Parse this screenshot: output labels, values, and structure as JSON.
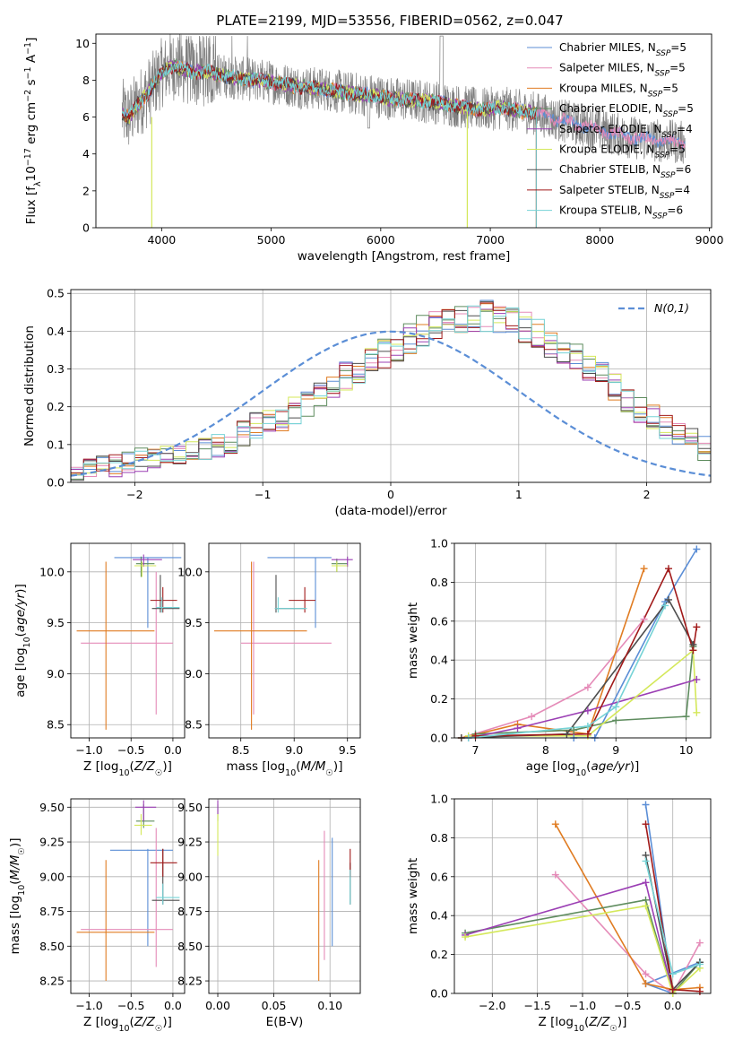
{
  "colors": {
    "chab_miles": "#5b8ed6",
    "salp_miles": "#e58bb8",
    "krou_miles": "#e07c22",
    "chab_elodie": "#5e8c5e",
    "salp_elodie": "#9b3fb4",
    "krou_elodie": "#d4e85a",
    "chab_stelib": "#4d4d4d",
    "salp_stelib": "#a11a1a",
    "krou_stelib": "#76d3d6",
    "data": "#808080",
    "normal": "#5b8ed6",
    "grid": "#b0b0b0"
  },
  "chart_data": [
    {
      "id": "spectrum",
      "type": "line",
      "title": "PLATE=2199, MJD=53556, FIBERID=0562, z=0.047",
      "xlabel": "wavelength [Angstrom, rest frame]",
      "ylabel": "Flux [f_λ10^-17 erg cm^-2 s^-1 A^-1]",
      "xlim": [
        3400,
        9020
      ],
      "ylim": [
        0,
        10.5
      ],
      "xticks": [
        4000,
        5000,
        6000,
        7000,
        8000,
        9000
      ],
      "yticks": [
        0,
        2,
        4,
        6,
        8,
        10
      ],
      "grid": false,
      "legend_position": "top-right",
      "data_range": [
        3640,
        8780
      ],
      "continuum_x": [
        3640,
        3700,
        3800,
        3900,
        4000,
        4100,
        4200,
        4300,
        4400,
        4500,
        4700,
        4900,
        5100,
        5300,
        5500,
        5700,
        5900,
        6100,
        6300,
        6500,
        6700,
        6900,
        7100,
        7300,
        7420,
        7600,
        7800,
        8000,
        8200,
        8400,
        8600,
        8780
      ],
      "continuum_y": [
        6.2,
        6.0,
        6.8,
        7.5,
        8.4,
        8.8,
        8.6,
        8.4,
        8.5,
        8.3,
        8.1,
        8.0,
        7.8,
        7.6,
        7.5,
        7.3,
        7.2,
        7.0,
        6.9,
        6.8,
        6.6,
        6.4,
        6.5,
        6.3,
        6.2,
        5.9,
        5.6,
        5.3,
        5.0,
        4.8,
        4.7,
        4.6
      ],
      "legend": [
        {
          "label": "Chabrier MILES, N",
          "n": "5"
        },
        {
          "label": "Salpeter MILES, N",
          "n": "5"
        },
        {
          "label": "Kroupa MILES, N",
          "n": "5"
        },
        {
          "label": "Chabrier ELODIE, N",
          "n": "5"
        },
        {
          "label": "Salpeter ELODIE, N",
          "n": "4"
        },
        {
          "label": "Kroupa ELODIE, N",
          "n": "5"
        },
        {
          "label": "Chabrier STELIB, N",
          "n": "6"
        },
        {
          "label": "Salpeter STELIB, N",
          "n": "4"
        },
        {
          "label": "Kroupa STELIB, N",
          "n": "6"
        }
      ],
      "legend_subscript": "SSP"
    },
    {
      "id": "residuals",
      "type": "step",
      "xlabel": "(data-model)/error",
      "ylabel": "Normed distribution",
      "xlim": [
        -2.5,
        2.5
      ],
      "ylim": [
        0,
        0.51
      ],
      "xticks": [
        -2,
        -1,
        0,
        1,
        2
      ],
      "yticks": [
        0.0,
        0.1,
        0.2,
        0.3,
        0.4,
        0.5
      ],
      "grid": true,
      "legend_position": "top-right",
      "normal_label": "N(0,1)",
      "bin_width": 0.1,
      "bin_start": -2.5,
      "base_hist": [
        0.03,
        0.035,
        0.04,
        0.045,
        0.05,
        0.06,
        0.07,
        0.075,
        0.08,
        0.085,
        0.09,
        0.1,
        0.11,
        0.13,
        0.15,
        0.16,
        0.17,
        0.19,
        0.21,
        0.23,
        0.26,
        0.28,
        0.3,
        0.32,
        0.34,
        0.36,
        0.38,
        0.4,
        0.41,
        0.42,
        0.43,
        0.44,
        0.44,
        0.43,
        0.42,
        0.41,
        0.39,
        0.37,
        0.35,
        0.33,
        0.3,
        0.28,
        0.25,
        0.22,
        0.19,
        0.17,
        0.15,
        0.13,
        0.11,
        0.09
      ]
    },
    {
      "id": "age_vs_Z",
      "type": "errorbar",
      "xlabel": "Z [log10(Z/Z☉)]",
      "ylabel": "age [log10(age/yr)]",
      "xlim": [
        -1.22,
        0.14
      ],
      "ylim": [
        8.37,
        10.28
      ],
      "xticks": [
        -1.0,
        -0.5,
        0.0
      ],
      "yticks": [
        8.5,
        9.0,
        9.5,
        10.0
      ],
      "grid": true,
      "points": [
        {
          "s": "chab_miles",
          "x": -0.3,
          "y": 10.14,
          "xe": [
            -0.7,
            0.1
          ],
          "ye": [
            9.45,
            10.14
          ]
        },
        {
          "s": "salp_miles",
          "x": -0.2,
          "y": 9.3,
          "xe": [
            -1.1,
            0.0
          ],
          "ye": [
            8.6,
            10.0
          ]
        },
        {
          "s": "krou_miles",
          "x": -0.8,
          "y": 9.42,
          "xe": [
            -1.15,
            -0.22
          ],
          "ye": [
            8.45,
            10.1
          ]
        },
        {
          "s": "chab_elodie",
          "x": -0.38,
          "y": 10.08,
          "xe": [
            -0.44,
            -0.22
          ],
          "ye": [
            9.95,
            10.15
          ]
        },
        {
          "s": "salp_elodie",
          "x": -0.35,
          "y": 10.12,
          "xe": [
            -0.48,
            -0.13
          ],
          "ye": [
            10.05,
            10.17
          ]
        },
        {
          "s": "krou_elodie",
          "x": -0.37,
          "y": 10.06,
          "xe": [
            -0.46,
            -0.2
          ],
          "ye": [
            9.95,
            10.1
          ]
        },
        {
          "s": "chab_stelib",
          "x": -0.15,
          "y": 9.64,
          "xe": [
            -0.25,
            0.08
          ],
          "ye": [
            9.6,
            9.97
          ]
        },
        {
          "s": "salp_stelib",
          "x": -0.12,
          "y": 9.72,
          "xe": [
            -0.27,
            0.05
          ],
          "ye": [
            9.6,
            9.85
          ]
        },
        {
          "s": "krou_stelib",
          "x": -0.13,
          "y": 9.65,
          "xe": [
            -0.2,
            0.08
          ],
          "ye": [
            9.6,
            9.75
          ]
        }
      ]
    },
    {
      "id": "age_vs_mass",
      "type": "errorbar",
      "xlabel": "mass [log10(M/M☉)]",
      "ylabel": "",
      "xlim": [
        8.2,
        9.62
      ],
      "ylim": [
        8.37,
        10.28
      ],
      "xticks": [
        8.5,
        9.0,
        9.5
      ],
      "yticks": [
        8.5,
        9.0,
        9.5,
        10.0
      ],
      "grid": true,
      "points": [
        {
          "s": "chab_miles",
          "x": 9.2,
          "y": 10.14,
          "xe": [
            8.75,
            9.35
          ],
          "ye": [
            9.45,
            10.14
          ]
        },
        {
          "s": "salp_miles",
          "x": 8.62,
          "y": 9.3,
          "xe": [
            8.5,
            9.35
          ],
          "ye": [
            8.6,
            10.1
          ]
        },
        {
          "s": "krou_miles",
          "x": 8.6,
          "y": 9.42,
          "xe": [
            8.25,
            9.12
          ],
          "ye": [
            8.45,
            10.1
          ]
        },
        {
          "s": "chab_elodie",
          "x": 9.4,
          "y": 10.08,
          "xe": [
            9.35,
            9.5
          ],
          "ye": [
            10.0,
            10.13
          ]
        },
        {
          "s": "salp_elodie",
          "x": 9.5,
          "y": 10.12,
          "xe": [
            9.35,
            9.55
          ],
          "ye": [
            10.05,
            10.15
          ]
        },
        {
          "s": "krou_elodie",
          "x": 9.4,
          "y": 10.06,
          "xe": [
            9.35,
            9.5
          ],
          "ye": [
            10.0,
            10.1
          ]
        },
        {
          "s": "chab_stelib",
          "x": 8.83,
          "y": 9.64,
          "xe": [
            8.82,
            9.1
          ],
          "ye": [
            9.6,
            9.97
          ]
        },
        {
          "s": "salp_stelib",
          "x": 9.1,
          "y": 9.72,
          "xe": [
            8.95,
            9.2
          ],
          "ye": [
            9.6,
            9.85
          ]
        },
        {
          "s": "krou_stelib",
          "x": 8.85,
          "y": 9.64,
          "xe": [
            8.82,
            9.12
          ],
          "ye": [
            9.6,
            9.75
          ]
        }
      ]
    },
    {
      "id": "mw_vs_age",
      "type": "line",
      "xlabel": "age [log10(age/yr)]",
      "ylabel": "mass weight",
      "xlim": [
        6.7,
        10.35
      ],
      "ylim": [
        0,
        1
      ],
      "xticks": [
        7,
        8,
        9,
        10
      ],
      "yticks": [
        0.0,
        0.2,
        0.4,
        0.6,
        0.8,
        1.0
      ],
      "grid": true,
      "series": [
        {
          "s": "chab_miles",
          "x": [
            8.4,
            8.7,
            9.7,
            10.15
          ],
          "y": [
            0.0,
            0.0,
            0.7,
            0.97
          ]
        },
        {
          "s": "salp_miles",
          "x": [
            6.8,
            7.8,
            8.6,
            9.4
          ],
          "y": [
            0.0,
            0.11,
            0.26,
            0.61
          ]
        },
        {
          "s": "krou_miles",
          "x": [
            6.8,
            7.6,
            8.6,
            9.4
          ],
          "y": [
            0.0,
            0.07,
            0.02,
            0.87
          ]
        },
        {
          "s": "chab_elodie",
          "x": [
            7.0,
            8.4,
            9.0,
            10.0,
            10.1
          ],
          "y": [
            0.02,
            0.04,
            0.09,
            0.11,
            0.47
          ]
        },
        {
          "s": "salp_elodie",
          "x": [
            6.9,
            7.6,
            8.6,
            10.15
          ],
          "y": [
            0.0,
            0.05,
            0.14,
            0.3
          ]
        },
        {
          "s": "krou_elodie",
          "x": [
            6.9,
            8.6,
            10.1,
            10.15
          ],
          "y": [
            0.01,
            0.01,
            0.45,
            0.13
          ]
        },
        {
          "s": "chab_stelib",
          "x": [
            6.8,
            8.3,
            9.75,
            10.1
          ],
          "y": [
            0.0,
            0.02,
            0.71,
            0.48
          ]
        },
        {
          "s": "salp_stelib",
          "x": [
            7.0,
            8.6,
            9.75,
            10.1,
            10.15
          ],
          "y": [
            0.01,
            0.02,
            0.87,
            0.45,
            0.57
          ]
        },
        {
          "s": "krou_stelib",
          "x": [
            6.9,
            8.6,
            9.0,
            9.7
          ],
          "y": [
            0.0,
            0.06,
            0.16,
            0.68
          ]
        }
      ]
    },
    {
      "id": "mass_vs_Z",
      "type": "errorbar",
      "xlabel": "Z [log10(Z/Z☉)]",
      "ylabel": "mass [log10(M/M☉)]",
      "xlim": [
        -1.22,
        0.14
      ],
      "ylim": [
        8.16,
        9.56
      ],
      "xticks": [
        -1.0,
        -0.5,
        0.0
      ],
      "yticks": [
        8.25,
        8.5,
        8.75,
        9.0,
        9.25,
        9.5
      ],
      "grid": true,
      "points": [
        {
          "s": "chab_miles",
          "x": -0.3,
          "y": 9.19,
          "xe": [
            -0.75,
            0.0
          ],
          "ye": [
            8.5,
            9.2
          ]
        },
        {
          "s": "salp_miles",
          "x": -0.2,
          "y": 8.62,
          "xe": [
            -1.1,
            0.0
          ],
          "ye": [
            8.35,
            9.35
          ]
        },
        {
          "s": "krou_miles",
          "x": -0.8,
          "y": 8.6,
          "xe": [
            -1.15,
            -0.22
          ],
          "ye": [
            8.25,
            9.12
          ]
        },
        {
          "s": "chab_elodie",
          "x": -0.35,
          "y": 9.4,
          "xe": [
            -0.44,
            -0.22
          ],
          "ye": [
            9.35,
            9.52
          ]
        },
        {
          "s": "salp_elodie",
          "x": -0.35,
          "y": 9.5,
          "xe": [
            -0.45,
            -0.2
          ],
          "ye": [
            9.4,
            9.55
          ]
        },
        {
          "s": "krou_elodie",
          "x": -0.38,
          "y": 9.37,
          "xe": [
            -0.46,
            -0.25
          ],
          "ye": [
            9.3,
            9.45
          ]
        },
        {
          "s": "chab_stelib",
          "x": -0.12,
          "y": 8.83,
          "xe": [
            -0.25,
            0.08
          ],
          "ye": [
            8.8,
            9.2
          ]
        },
        {
          "s": "salp_stelib",
          "x": -0.12,
          "y": 9.1,
          "xe": [
            -0.27,
            0.05
          ],
          "ye": [
            9.0,
            9.2
          ]
        },
        {
          "s": "krou_stelib",
          "x": -0.12,
          "y": 8.85,
          "xe": [
            -0.2,
            0.08
          ],
          "ye": [
            8.8,
            8.95
          ]
        }
      ]
    },
    {
      "id": "mass_vs_EBV",
      "type": "errorbar",
      "xlabel": "E(B-V)",
      "ylabel": "",
      "xlim": [
        -0.008,
        0.127
      ],
      "ylim": [
        8.16,
        9.56
      ],
      "xticks": [
        0.0,
        0.05,
        0.1
      ],
      "yticks": [
        8.25,
        8.5,
        8.75,
        9.0,
        9.25,
        9.5
      ],
      "grid": true,
      "points": [
        {
          "s": "chab_miles",
          "x": 0.102,
          "y": 8.83,
          "ye": [
            8.5,
            9.28
          ]
        },
        {
          "s": "salp_miles",
          "x": 0.095,
          "y": 8.8,
          "ye": [
            8.4,
            9.33
          ]
        },
        {
          "s": "krou_miles",
          "x": 0.09,
          "y": 8.6,
          "ye": [
            8.25,
            9.12
          ]
        },
        {
          "s": "chab_elodie",
          "x": 0.0,
          "y": 9.45,
          "ye": [
            9.4,
            9.52
          ]
        },
        {
          "s": "salp_elodie",
          "x": 0.0,
          "y": 9.5,
          "ye": [
            9.45,
            9.55
          ]
        },
        {
          "s": "krou_elodie",
          "x": 0.0,
          "y": 9.3,
          "ye": [
            9.15,
            9.45
          ]
        },
        {
          "s": "chab_stelib",
          "x": 0.118,
          "y": 8.95,
          "ye": [
            8.8,
            9.1
          ]
        },
        {
          "s": "salp_stelib",
          "x": 0.118,
          "y": 9.1,
          "ye": [
            9.0,
            9.2
          ]
        },
        {
          "s": "krou_stelib",
          "x": 0.118,
          "y": 8.9,
          "ye": [
            8.8,
            9.05
          ]
        }
      ]
    },
    {
      "id": "mw_vs_Z",
      "type": "line",
      "xlabel": "Z [log10(Z/Z☉)]",
      "ylabel": "mass weight",
      "xlim": [
        -2.42,
        0.42
      ],
      "ylim": [
        0,
        1
      ],
      "xticks": [
        -2.0,
        -1.5,
        -1.0,
        -0.5,
        0.0
      ],
      "yticks": [
        0.0,
        0.2,
        0.4,
        0.6,
        0.8,
        1.0
      ],
      "grid": true,
      "series": [
        {
          "s": "chab_miles",
          "x": [
            -0.3,
            0.0,
            -0.3,
            0.3
          ],
          "y": [
            0.97,
            0.0,
            0.05,
            0.16
          ]
        },
        {
          "s": "salp_miles",
          "x": [
            -1.3,
            -0.3,
            0.0,
            0.3
          ],
          "y": [
            0.61,
            0.1,
            0.0,
            0.26
          ]
        },
        {
          "s": "krou_miles",
          "x": [
            -1.3,
            -0.3,
            0.0,
            0.3
          ],
          "y": [
            0.87,
            0.05,
            0.02,
            0.03
          ]
        },
        {
          "s": "chab_elodie",
          "x": [
            -2.3,
            -0.3,
            0.0,
            0.3
          ],
          "y": [
            0.31,
            0.48,
            0.0,
            0.16
          ]
        },
        {
          "s": "salp_elodie",
          "x": [
            -2.3,
            -0.3,
            0.0
          ],
          "y": [
            0.3,
            0.57,
            0.0
          ]
        },
        {
          "s": "krou_elodie",
          "x": [
            -2.3,
            -0.3,
            0.0,
            0.3
          ],
          "y": [
            0.29,
            0.45,
            0.0,
            0.13
          ]
        },
        {
          "s": "chab_stelib",
          "x": [
            -0.3,
            0.0,
            0.3
          ],
          "y": [
            0.71,
            0.02,
            0.16
          ]
        },
        {
          "s": "salp_stelib",
          "x": [
            -0.3,
            0.0,
            0.3
          ],
          "y": [
            0.87,
            0.02,
            0.01
          ]
        },
        {
          "s": "krou_stelib",
          "x": [
            -0.3,
            0.0,
            0.3
          ],
          "y": [
            0.68,
            0.1,
            0.15
          ]
        }
      ]
    }
  ]
}
